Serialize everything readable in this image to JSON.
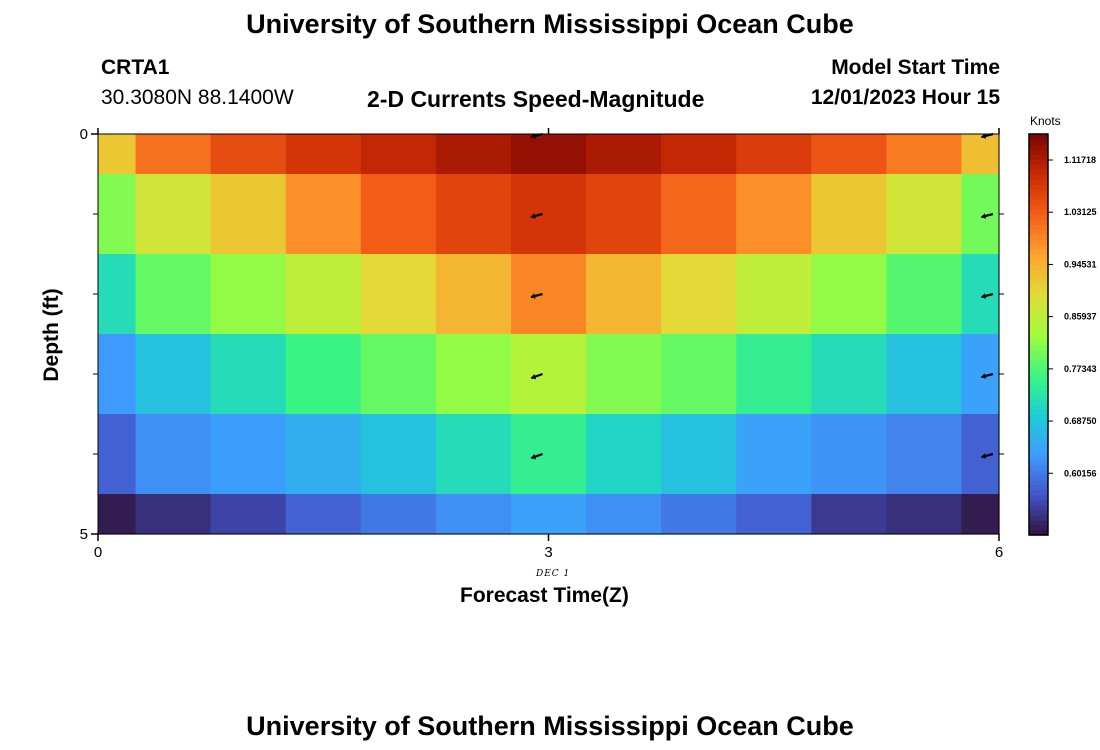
{
  "header": {
    "title": "University of Southern Mississippi Ocean Cube",
    "station_id": "CRTA1",
    "station_location": "30.3080N  88.1400W",
    "plot_title": "2-D Currents Speed-Magnitude",
    "model_start_label": "Model Start Time",
    "model_start_value": "12/01/2023 Hour 15"
  },
  "footer": {
    "title": "University of Southern Mississippi Ocean Cube"
  },
  "chart_data": {
    "type": "heatmap",
    "xlabel": "Forecast Time(Z)",
    "ylabel": "Depth (ft)",
    "x_ticks": [
      "0",
      "3",
      "6"
    ],
    "x_tick_values": [
      0,
      3,
      6
    ],
    "y_ticks": [
      "0",
      "5"
    ],
    "y_tick_values": [
      0,
      5
    ],
    "xlim": [
      0,
      6
    ],
    "ylim": [
      0,
      5
    ],
    "date_label": "DEC 1",
    "x": [
      0,
      0.5,
      1,
      1.5,
      2,
      2.5,
      3,
      3.5,
      4,
      4.5,
      5,
      5.5,
      6
    ],
    "depth_bin_edges": [
      0,
      0.5,
      1.5,
      2.5,
      3.5,
      4.5,
      5
    ],
    "values": [
      [
        0.92,
        1.01,
        1.05,
        1.08,
        1.1,
        1.12,
        1.14,
        1.12,
        1.1,
        1.07,
        1.04,
        1.0,
        0.93
      ],
      [
        0.81,
        0.88,
        0.92,
        0.98,
        1.03,
        1.06,
        1.08,
        1.06,
        1.02,
        0.98,
        0.92,
        0.88,
        0.8
      ],
      [
        0.72,
        0.79,
        0.82,
        0.86,
        0.9,
        0.94,
        0.99,
        0.94,
        0.9,
        0.86,
        0.82,
        0.78,
        0.72
      ],
      [
        0.63,
        0.68,
        0.72,
        0.76,
        0.79,
        0.82,
        0.85,
        0.81,
        0.79,
        0.75,
        0.72,
        0.68,
        0.64
      ],
      [
        0.58,
        0.62,
        0.635,
        0.655,
        0.68,
        0.72,
        0.75,
        0.71,
        0.68,
        0.64,
        0.625,
        0.61,
        0.58
      ],
      [
        0.51,
        0.53,
        0.55,
        0.58,
        0.6,
        0.62,
        0.64,
        0.62,
        0.6,
        0.58,
        0.54,
        0.53,
        0.51
      ]
    ],
    "vectors": [
      {
        "x": 3,
        "depth": 0,
        "dir_deg": 195
      },
      {
        "x": 3,
        "depth": 1,
        "dir_deg": 195
      },
      {
        "x": 3,
        "depth": 2,
        "dir_deg": 195
      },
      {
        "x": 3,
        "depth": 3,
        "dir_deg": 200
      },
      {
        "x": 3,
        "depth": 4,
        "dir_deg": 200
      },
      {
        "x": 6,
        "depth": 0,
        "dir_deg": 195
      },
      {
        "x": 6,
        "depth": 1,
        "dir_deg": 195
      },
      {
        "x": 6,
        "depth": 2,
        "dir_deg": 195
      },
      {
        "x": 6,
        "depth": 3,
        "dir_deg": 195
      },
      {
        "x": 6,
        "depth": 4,
        "dir_deg": 195
      }
    ],
    "colorbar": {
      "unit": "Knots",
      "range": [
        0.5,
        1.16
      ],
      "tick_labels": [
        "1.11718",
        "1.03125",
        "0.94531",
        "0.85937",
        "0.77343",
        "0.68750",
        "0.60156"
      ],
      "tick_values": [
        1.11718,
        1.03125,
        0.94531,
        0.85937,
        0.77343,
        0.6875,
        0.60156
      ],
      "colormap": "turbo"
    }
  }
}
